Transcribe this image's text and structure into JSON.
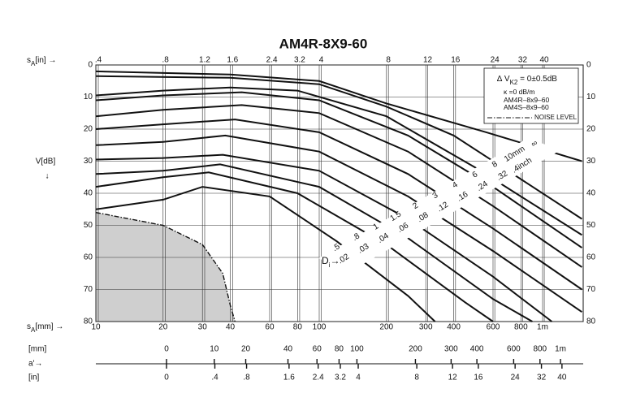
{
  "chart_data": {
    "type": "line",
    "title": "AM4R-8X9-60",
    "x_label": {
      "text": "s",
      "sub": "A",
      "rest": "[mm] →"
    },
    "x2_label": {
      "text": "s",
      "sub": "A",
      "rest": "[in] →"
    },
    "y_label": "V[dB]",
    "y_arrow": "↓",
    "log_x": true,
    "grid": true,
    "color": "#111111",
    "xlim": [
      10,
      1520
    ],
    "xticks": [
      10,
      20,
      30,
      40,
      60,
      80,
      100,
      200,
      300,
      400,
      600,
      800,
      {
        "value": 1000,
        "label": "1m"
      }
    ],
    "x2lim": [
      0.39,
      59.8
    ],
    "x2ticks": [
      {
        "value": 0.4,
        "label": ".4"
      },
      {
        "value": 0.8,
        "label": ".8"
      },
      1.2,
      1.6,
      2.4,
      3.2,
      4,
      8,
      12,
      16,
      24,
      32,
      40
    ],
    "ylim": [
      0,
      80
    ],
    "yticks": [
      0,
      10,
      20,
      30,
      40,
      50,
      60,
      70,
      80
    ],
    "di_label": {
      "text": "D",
      "sub": "i",
      "rest": "→"
    },
    "series": [
      {
        "name": ".5",
        "inch_label": ".02",
        "x": [
          10,
          20,
          30,
          60,
          120,
          250,
          330
        ],
        "values": [
          45,
          42,
          38,
          41,
          55,
          72,
          80
        ]
      },
      {
        "name": ".8",
        "inch_label": ".03",
        "x": [
          10,
          20,
          32,
          80,
          200,
          450,
          600
        ],
        "values": [
          38,
          35,
          33.5,
          40,
          56,
          74,
          80
        ]
      },
      {
        "name": "1",
        "inch_label": ".04",
        "x": [
          10,
          20,
          36,
          100,
          250,
          600,
          900
        ],
        "values": [
          34,
          33,
          31,
          38,
          54,
          73,
          80
        ]
      },
      {
        "name": "1.5",
        "inch_label": ".06",
        "x": [
          10,
          20,
          37,
          100,
          250,
          600,
          1100
        ],
        "values": [
          29.5,
          29,
          28,
          33,
          48,
          66,
          80
        ]
      },
      {
        "name": "2",
        "inch_label": ".08",
        "x": [
          10,
          20,
          38,
          100,
          250,
          600,
          1500
        ],
        "values": [
          25,
          24,
          22,
          27,
          41,
          58,
          77
        ]
      },
      {
        "name": "3",
        "inch_label": ".12",
        "x": [
          10,
          20,
          42,
          100,
          250,
          600,
          1500
        ],
        "values": [
          20,
          18.5,
          17,
          21,
          34,
          51,
          70
        ]
      },
      {
        "name": "4",
        "inch_label": ".16",
        "x": [
          10,
          20,
          45,
          100,
          250,
          600,
          1500
        ],
        "values": [
          16,
          14,
          12.5,
          15,
          27,
          44,
          63
        ]
      },
      {
        "name": "6",
        "inch_label": ".24",
        "x": [
          10,
          20,
          45,
          100,
          250,
          600,
          1500
        ],
        "values": [
          11,
          9.5,
          8.5,
          11,
          22,
          38,
          57
        ]
      },
      {
        "name": "8",
        "inch_label": ".32",
        "x": [
          10,
          20,
          40,
          80,
          200,
          500,
          1500
        ],
        "values": [
          9.5,
          8,
          7,
          8,
          16,
          32,
          53
        ]
      },
      {
        "name": "10mm",
        "inch_label": ".4inch",
        "x": [
          10,
          40,
          100,
          200,
          400,
          700,
          1500
        ],
        "values": [
          3.5,
          4,
          6,
          13,
          22,
          33,
          48
        ]
      },
      {
        "name": "∞",
        "x": [
          10,
          40,
          100,
          200,
          560,
          1500
        ],
        "values": [
          2,
          3,
          5,
          12,
          21,
          30
        ]
      }
    ],
    "noise": {
      "name": "NOISE LEVEL",
      "x": [
        10,
        20,
        30,
        37,
        40,
        42
      ],
      "values": [
        46,
        50,
        56,
        65,
        75,
        80
      ]
    },
    "legend_notes": [
      {
        "text": "∆ V",
        "sub": "K2",
        "rest": " =  0±0.5dB"
      },
      {
        "text": "κ =0  dB/m",
        "sub": "",
        "rest": ""
      },
      {
        "text": "AM4R–8x9–60",
        "sub": "",
        "rest": ""
      },
      {
        "text": "AM4S–8x9–60",
        "sub": "",
        "rest": ""
      }
    ],
    "a_scale": {
      "label": "a'→",
      "mm_unit": "[mm]",
      "in_unit": "[in]",
      "mm_ticks": [
        0,
        10,
        20,
        40,
        60,
        80,
        100,
        200,
        300,
        400,
        600,
        800,
        {
          "value": 1000,
          "label": "1m"
        }
      ],
      "in_ticks": [
        0,
        {
          "value": 0.4,
          "label": ".4"
        },
        {
          "value": 0.8,
          "label": ".8"
        },
        1.6,
        2.4,
        3.2,
        4,
        8,
        12,
        16,
        24,
        32,
        40
      ]
    }
  }
}
